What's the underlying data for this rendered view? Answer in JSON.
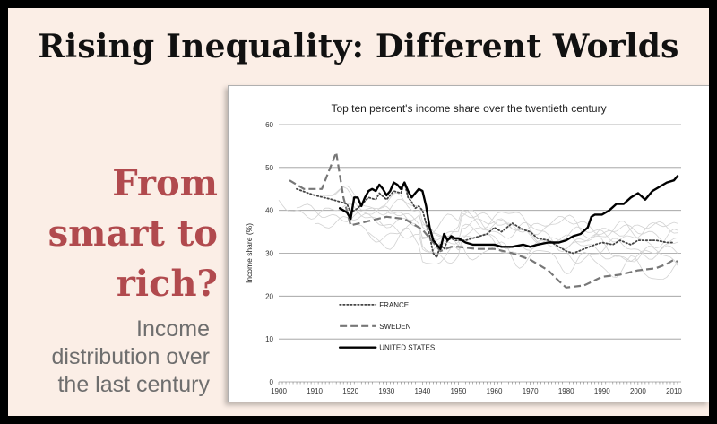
{
  "slide": {
    "title": "Rising Inequality: Different Worlds",
    "headline_lines": [
      "From",
      "smart to",
      "rich?"
    ],
    "subtext_lines": [
      "Income",
      "distribution over",
      "the last century"
    ]
  },
  "colors": {
    "slide_background": "#fbeee6",
    "border": "#000000",
    "headline": "#b14a4e",
    "subtext": "#6e6e6e",
    "france": "#444444",
    "sweden": "#777777",
    "united_states": "#000000",
    "other_countries": "#d2d2d2",
    "gridline": "#9a9a9a"
  },
  "chart_data": {
    "type": "line",
    "title": "Top ten percent's income share over the twentieth century",
    "xlabel": "",
    "ylabel": "Income share (%)",
    "xlim": [
      1900,
      2012
    ],
    "ylim": [
      0,
      60
    ],
    "x_ticks": [
      1900,
      1910,
      1920,
      1930,
      1940,
      1950,
      1960,
      1970,
      1980,
      1990,
      2000,
      2010
    ],
    "y_ticks": [
      0,
      10,
      20,
      30,
      40,
      50,
      60
    ],
    "grid": "horizontal",
    "legend_position": "bottom-left",
    "series": [
      {
        "name": "FRANCE",
        "style": "dotted",
        "x": [
          1905,
          1910,
          1915,
          1919,
          1920,
          1922,
          1925,
          1927,
          1928,
          1930,
          1932,
          1934,
          1935,
          1936,
          1937,
          1938,
          1939,
          1940,
          1941,
          1942,
          1943,
          1944,
          1945,
          1946,
          1947,
          1948,
          1949,
          1950,
          1952,
          1954,
          1956,
          1958,
          1960,
          1962,
          1965,
          1968,
          1970,
          1972,
          1975,
          1978,
          1980,
          1982,
          1985,
          1988,
          1990,
          1993,
          1995,
          1998,
          2000,
          2003,
          2005,
          2008,
          2010
        ],
        "y": [
          45,
          43.5,
          42.5,
          41.5,
          39.5,
          40.5,
          43,
          42.5,
          44,
          42.5,
          44.5,
          44,
          46.5,
          43,
          42,
          40.5,
          41,
          40,
          37,
          34,
          30,
          29,
          32,
          31,
          33,
          33.5,
          33,
          33,
          33,
          33.5,
          34,
          34.5,
          36,
          35,
          37,
          35.5,
          35,
          33.5,
          33,
          31.5,
          30.5,
          30,
          31,
          32,
          32.5,
          32,
          33,
          32,
          33,
          33,
          33,
          32.5,
          32.5
        ]
      },
      {
        "name": "SWEDEN",
        "style": "dashed",
        "x": [
          1903,
          1907,
          1912,
          1916,
          1918,
          1920,
          1925,
          1930,
          1935,
          1940,
          1945,
          1948,
          1950,
          1955,
          1960,
          1965,
          1970,
          1975,
          1978,
          1980,
          1985,
          1990,
          1995,
          2000,
          2005,
          2008,
          2010,
          2011
        ],
        "y": [
          47,
          45,
          45,
          53.5,
          43,
          36.5,
          37.5,
          38.5,
          38,
          35.5,
          30.5,
          31.5,
          31.5,
          31,
          31,
          30,
          28.5,
          26,
          23.5,
          22,
          22.5,
          24.5,
          25,
          26,
          26.5,
          27.5,
          28.5,
          28
        ]
      },
      {
        "name": "UNITED STATES",
        "style": "solid",
        "x": [
          1917,
          1918,
          1919,
          1920,
          1921,
          1922,
          1923,
          1924,
          1925,
          1926,
          1927,
          1928,
          1929,
          1930,
          1931,
          1932,
          1933,
          1934,
          1935,
          1936,
          1937,
          1938,
          1939,
          1940,
          1941,
          1942,
          1943,
          1944,
          1945,
          1946,
          1947,
          1948,
          1949,
          1950,
          1952,
          1954,
          1956,
          1958,
          1960,
          1962,
          1965,
          1968,
          1970,
          1972,
          1975,
          1978,
          1980,
          1982,
          1984,
          1986,
          1987,
          1988,
          1990,
          1992,
          1994,
          1996,
          1998,
          2000,
          2002,
          2004,
          2006,
          2008,
          2010,
          2011
        ],
        "y": [
          40.5,
          40,
          39.5,
          38,
          43,
          43,
          41,
          43,
          44.5,
          45,
          44.5,
          46,
          45,
          43.5,
          44.5,
          46.5,
          46,
          45,
          46.5,
          44.5,
          43,
          44,
          45,
          44.5,
          41,
          36,
          33,
          32,
          31,
          34.5,
          33,
          34,
          33.5,
          33.5,
          32.5,
          32,
          32,
          32,
          32,
          31.5,
          31.5,
          32,
          31.5,
          32,
          32.5,
          32.5,
          33,
          34,
          34.5,
          36,
          38.5,
          39,
          39,
          40,
          41.5,
          41.5,
          43,
          44,
          42.5,
          44.5,
          45.5,
          46.5,
          47,
          48
        ]
      }
    ],
    "background_series_style": "thin light grey lines for other countries (unlabelled)"
  }
}
